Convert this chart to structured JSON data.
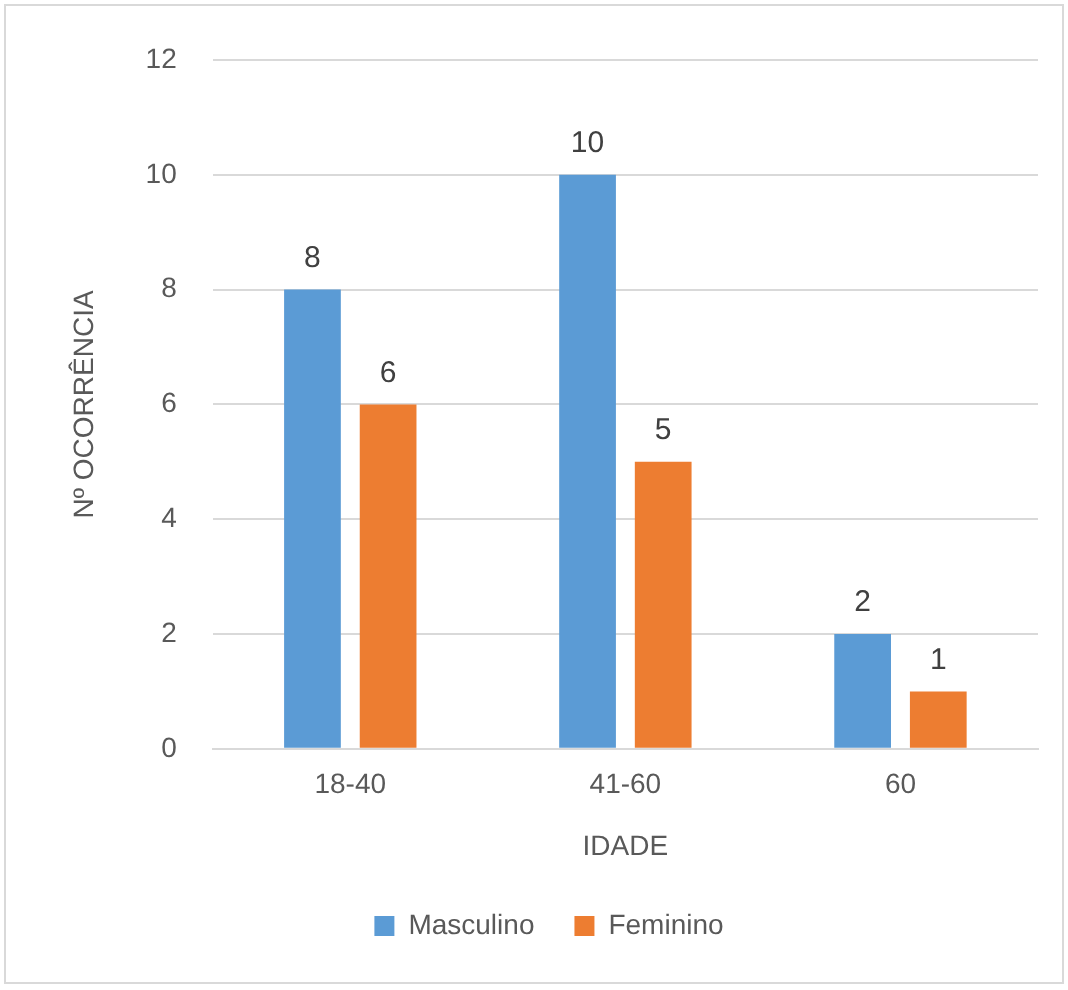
{
  "chart_data": {
    "type": "bar",
    "xlabel": "IDADE",
    "ylabel": "Nº OCORRÊNCIA",
    "categories": [
      "18-40",
      "41-60",
      "60"
    ],
    "series": [
      {
        "name": "Masculino",
        "color": "#5b9bd5",
        "values": [
          8,
          10,
          2
        ]
      },
      {
        "name": "Feminino",
        "color": "#ed7d31",
        "values": [
          6,
          5,
          1
        ]
      }
    ],
    "ylim": [
      0,
      12
    ],
    "yticks": [
      0,
      2,
      4,
      6,
      8,
      10,
      12
    ],
    "grid": "y",
    "legend": "bottom",
    "data_labels": true
  }
}
